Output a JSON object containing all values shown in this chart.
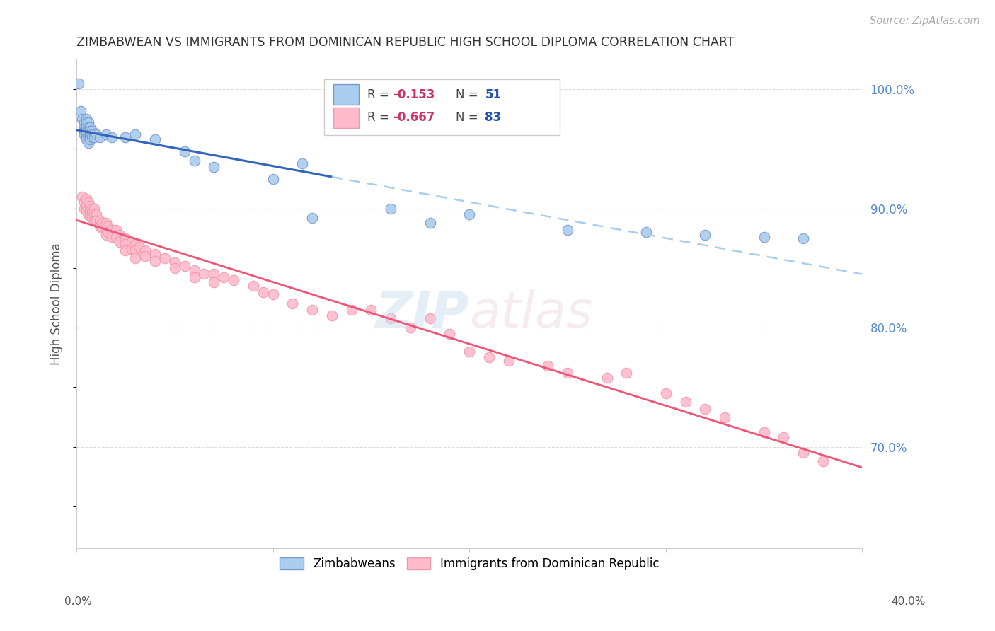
{
  "title": "ZIMBABWEAN VS IMMIGRANTS FROM DOMINICAN REPUBLIC HIGH SCHOOL DIPLOMA CORRELATION CHART",
  "source": "Source: ZipAtlas.com",
  "ylabel": "High School Diploma",
  "xlim": [
    0.0,
    0.4
  ],
  "ylim": [
    0.615,
    1.025
  ],
  "yticks": [
    0.7,
    0.8,
    0.9,
    1.0
  ],
  "ytick_labels": [
    "70.0%",
    "80.0%",
    "90.0%",
    "100.0%"
  ],
  "blue_scatter_color": "#aaccee",
  "pink_scatter_color": "#ffbbcc",
  "blue_line_color": "#3366bb",
  "blue_dashed_color": "#aaccee",
  "pink_line_color": "#ee5577",
  "grid_color": "#dddddd",
  "background_color": "#ffffff",
  "blue_points": [
    [
      0.001,
      1.005
    ],
    [
      0.002,
      0.982
    ],
    [
      0.003,
      0.975
    ],
    [
      0.004,
      0.972
    ],
    [
      0.004,
      0.968
    ],
    [
      0.004,
      0.965
    ],
    [
      0.004,
      0.962
    ],
    [
      0.005,
      0.975
    ],
    [
      0.005,
      0.972
    ],
    [
      0.005,
      0.968
    ],
    [
      0.005,
      0.965
    ],
    [
      0.005,
      0.963
    ],
    [
      0.005,
      0.96
    ],
    [
      0.005,
      0.958
    ],
    [
      0.006,
      0.972
    ],
    [
      0.006,
      0.968
    ],
    [
      0.006,
      0.965
    ],
    [
      0.006,
      0.962
    ],
    [
      0.006,
      0.96
    ],
    [
      0.006,
      0.958
    ],
    [
      0.006,
      0.955
    ],
    [
      0.007,
      0.968
    ],
    [
      0.007,
      0.965
    ],
    [
      0.007,
      0.962
    ],
    [
      0.007,
      0.96
    ],
    [
      0.007,
      0.958
    ],
    [
      0.008,
      0.965
    ],
    [
      0.008,
      0.962
    ],
    [
      0.008,
      0.96
    ],
    [
      0.009,
      0.963
    ],
    [
      0.009,
      0.96
    ],
    [
      0.01,
      0.962
    ],
    [
      0.012,
      0.96
    ],
    [
      0.015,
      0.962
    ],
    [
      0.018,
      0.96
    ],
    [
      0.025,
      0.96
    ],
    [
      0.03,
      0.962
    ],
    [
      0.04,
      0.958
    ],
    [
      0.055,
      0.948
    ],
    [
      0.06,
      0.94
    ],
    [
      0.07,
      0.935
    ],
    [
      0.1,
      0.925
    ],
    [
      0.115,
      0.938
    ],
    [
      0.12,
      0.892
    ],
    [
      0.16,
      0.9
    ],
    [
      0.18,
      0.888
    ],
    [
      0.2,
      0.895
    ],
    [
      0.25,
      0.882
    ],
    [
      0.29,
      0.88
    ],
    [
      0.32,
      0.878
    ],
    [
      0.35,
      0.876
    ],
    [
      0.37,
      0.875
    ]
  ],
  "pink_points": [
    [
      0.003,
      0.91
    ],
    [
      0.004,
      0.905
    ],
    [
      0.004,
      0.9
    ],
    [
      0.005,
      0.908
    ],
    [
      0.005,
      0.902
    ],
    [
      0.005,
      0.898
    ],
    [
      0.006,
      0.905
    ],
    [
      0.006,
      0.9
    ],
    [
      0.006,
      0.895
    ],
    [
      0.007,
      0.902
    ],
    [
      0.007,
      0.898
    ],
    [
      0.007,
      0.894
    ],
    [
      0.008,
      0.9
    ],
    [
      0.008,
      0.896
    ],
    [
      0.008,
      0.892
    ],
    [
      0.009,
      0.9
    ],
    [
      0.009,
      0.895
    ],
    [
      0.009,
      0.89
    ],
    [
      0.01,
      0.895
    ],
    [
      0.01,
      0.89
    ],
    [
      0.012,
      0.89
    ],
    [
      0.012,
      0.885
    ],
    [
      0.013,
      0.888
    ],
    [
      0.013,
      0.884
    ],
    [
      0.015,
      0.888
    ],
    [
      0.015,
      0.882
    ],
    [
      0.015,
      0.878
    ],
    [
      0.016,
      0.885
    ],
    [
      0.016,
      0.88
    ],
    [
      0.018,
      0.882
    ],
    [
      0.018,
      0.876
    ],
    [
      0.02,
      0.882
    ],
    [
      0.02,
      0.876
    ],
    [
      0.022,
      0.878
    ],
    [
      0.022,
      0.872
    ],
    [
      0.025,
      0.875
    ],
    [
      0.025,
      0.87
    ],
    [
      0.025,
      0.865
    ],
    [
      0.028,
      0.872
    ],
    [
      0.028,
      0.866
    ],
    [
      0.03,
      0.87
    ],
    [
      0.03,
      0.865
    ],
    [
      0.03,
      0.858
    ],
    [
      0.032,
      0.868
    ],
    [
      0.035,
      0.865
    ],
    [
      0.035,
      0.86
    ],
    [
      0.04,
      0.862
    ],
    [
      0.04,
      0.856
    ],
    [
      0.045,
      0.858
    ],
    [
      0.05,
      0.855
    ],
    [
      0.05,
      0.85
    ],
    [
      0.055,
      0.852
    ],
    [
      0.06,
      0.848
    ],
    [
      0.06,
      0.842
    ],
    [
      0.065,
      0.845
    ],
    [
      0.07,
      0.845
    ],
    [
      0.07,
      0.838
    ],
    [
      0.075,
      0.842
    ],
    [
      0.08,
      0.84
    ],
    [
      0.09,
      0.835
    ],
    [
      0.095,
      0.83
    ],
    [
      0.1,
      0.828
    ],
    [
      0.11,
      0.82
    ],
    [
      0.12,
      0.815
    ],
    [
      0.13,
      0.81
    ],
    [
      0.14,
      0.815
    ],
    [
      0.15,
      0.815
    ],
    [
      0.16,
      0.808
    ],
    [
      0.17,
      0.8
    ],
    [
      0.18,
      0.808
    ],
    [
      0.19,
      0.795
    ],
    [
      0.2,
      0.78
    ],
    [
      0.21,
      0.775
    ],
    [
      0.22,
      0.772
    ],
    [
      0.24,
      0.768
    ],
    [
      0.25,
      0.762
    ],
    [
      0.27,
      0.758
    ],
    [
      0.28,
      0.762
    ],
    [
      0.3,
      0.745
    ],
    [
      0.31,
      0.738
    ],
    [
      0.32,
      0.732
    ],
    [
      0.33,
      0.725
    ],
    [
      0.35,
      0.712
    ],
    [
      0.36,
      0.708
    ],
    [
      0.37,
      0.695
    ],
    [
      0.38,
      0.688
    ]
  ]
}
